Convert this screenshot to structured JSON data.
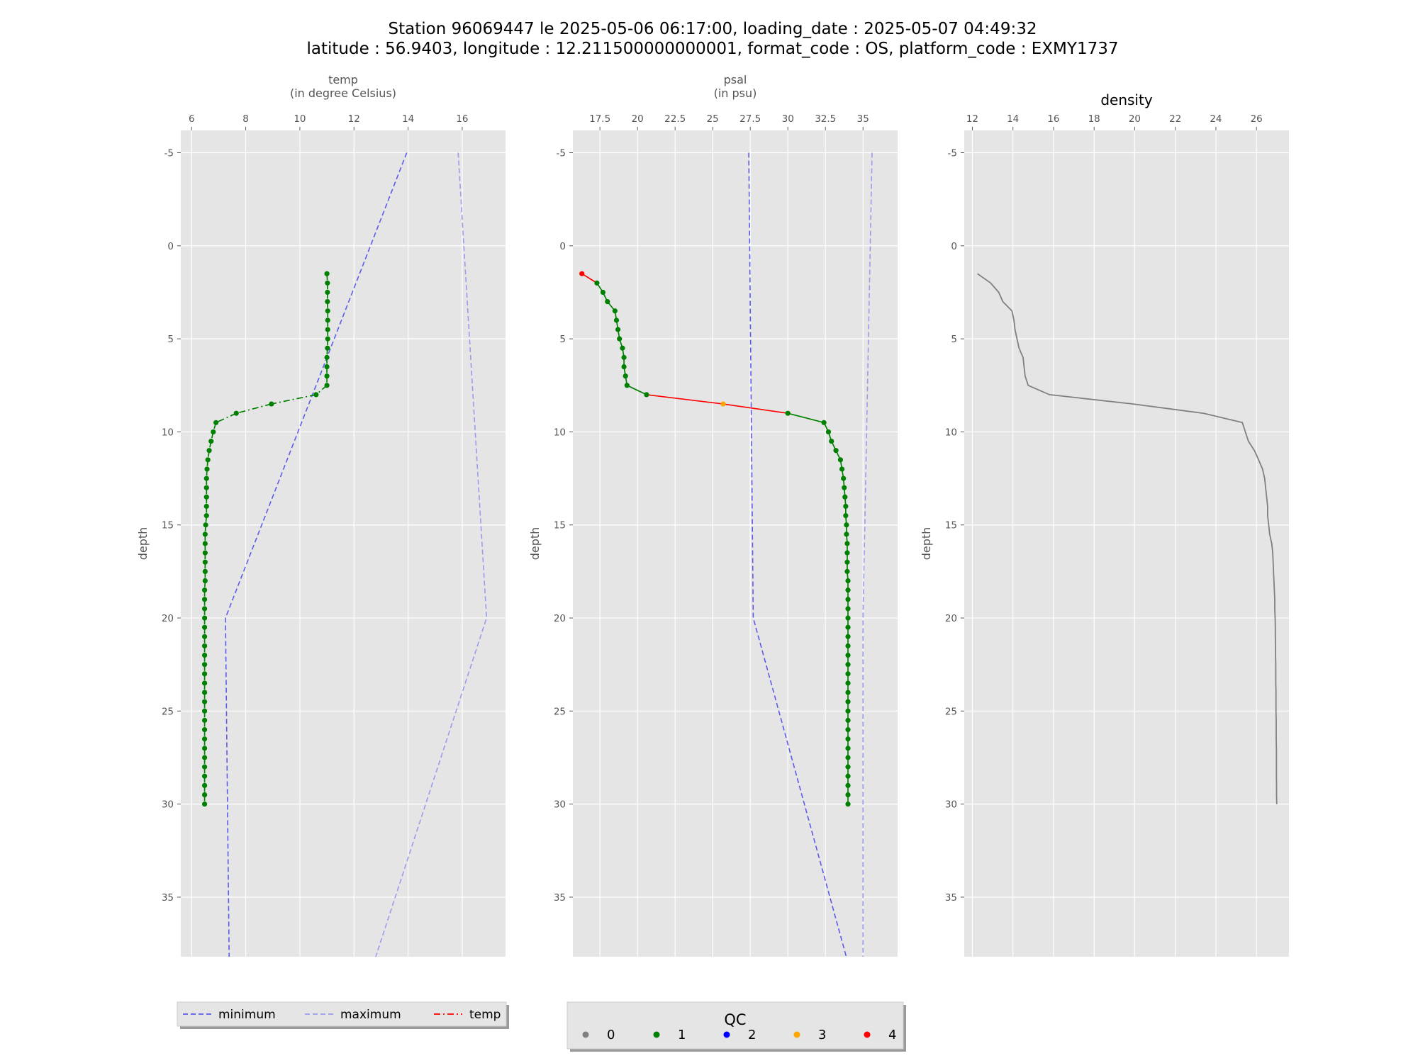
{
  "figure": {
    "title_line1": "Station 96069447 le 2025-05-06 06:17:00, loading_date : 2025-05-07 04:49:32",
    "title_line2": "latitude : 56.9403, longitude : 12.211500000000001, format_code : OS, platform_code : EXMY1737"
  },
  "colors": {
    "panel_bg": "#e5e5e5",
    "grid": "#ffffff",
    "minimum": "#5b5bea",
    "maximum": "#9b9bee",
    "density": "#808080",
    "qc": {
      "0": "#808080",
      "1": "#008000",
      "2": "#0000ff",
      "3": "#ffa500",
      "4": "#ff0000"
    }
  },
  "legend_lines": {
    "items": [
      {
        "label": "minimum",
        "color": "#5b5bea",
        "style": "dashed"
      },
      {
        "label": "maximum",
        "color": "#9b9bee",
        "style": "dashed"
      },
      {
        "label": "temp",
        "color": "#ff0000",
        "style": "dashdot"
      }
    ]
  },
  "legend_qc": {
    "title": "QC",
    "items": [
      {
        "label": "0",
        "color": "#808080"
      },
      {
        "label": "1",
        "color": "#008000"
      },
      {
        "label": "2",
        "color": "#0000ff"
      },
      {
        "label": "3",
        "color": "#ffa500"
      },
      {
        "label": "4",
        "color": "#ff0000"
      }
    ]
  },
  "chart_data": [
    {
      "type": "line",
      "xlabel": "temp\n(in degree Celsius)",
      "ylabel": "depth",
      "xlim": [
        5.6,
        17.6
      ],
      "ylim": [
        38.2,
        -6.2
      ],
      "xticks": [
        6,
        8,
        10,
        12,
        14,
        16
      ],
      "yticks": [
        -5,
        0,
        5,
        10,
        15,
        20,
        25,
        30,
        35
      ],
      "grid": true,
      "minimum": {
        "x": [
          13.95,
          7.25,
          7.4
        ],
        "y": [
          -5,
          20,
          40
        ]
      },
      "maximum": {
        "x": [
          15.85,
          16.9,
          12.4
        ],
        "y": [
          -5,
          20,
          40
        ]
      },
      "profile": {
        "line_style": "dashdot",
        "depth": [
          1.5,
          2,
          2.5,
          3,
          3.5,
          4,
          4.5,
          5,
          5.5,
          6,
          6.5,
          7,
          7.5,
          8,
          8.5,
          9,
          9.5,
          10,
          10.5,
          11,
          11.5,
          12,
          12.5,
          13,
          13.5,
          14,
          14.5,
          15,
          15.5,
          16,
          16.5,
          17,
          17.5,
          18,
          18.5,
          19,
          19.5,
          20,
          20.5,
          21,
          21.5,
          22,
          22.5,
          23,
          23.5,
          24,
          24.5,
          25,
          25.5,
          26,
          26.5,
          27,
          27.5,
          28,
          28.5,
          29,
          29.5,
          30
        ],
        "values": [
          11.0,
          11.02,
          11.02,
          11.02,
          11.03,
          11.03,
          11.03,
          11.03,
          11.02,
          11.0,
          11.0,
          11.0,
          11.0,
          10.6,
          8.95,
          7.65,
          6.9,
          6.8,
          6.72,
          6.65,
          6.6,
          6.57,
          6.55,
          6.55,
          6.55,
          6.55,
          6.55,
          6.52,
          6.5,
          6.5,
          6.5,
          6.5,
          6.5,
          6.5,
          6.48,
          6.48,
          6.48,
          6.48,
          6.48,
          6.48,
          6.48,
          6.48,
          6.48,
          6.48,
          6.48,
          6.48,
          6.48,
          6.48,
          6.48,
          6.48,
          6.48,
          6.48,
          6.48,
          6.48,
          6.48,
          6.48,
          6.48,
          6.48
        ],
        "qc": [
          1,
          1,
          1,
          1,
          1,
          1,
          1,
          1,
          1,
          1,
          1,
          1,
          1,
          1,
          1,
          1,
          1,
          1,
          1,
          1,
          1,
          1,
          1,
          1,
          1,
          1,
          1,
          1,
          1,
          1,
          1,
          1,
          1,
          1,
          1,
          1,
          1,
          1,
          1,
          1,
          1,
          1,
          1,
          1,
          1,
          1,
          1,
          1,
          1,
          1,
          1,
          1,
          1,
          1,
          1,
          1,
          1,
          1
        ]
      }
    },
    {
      "type": "line",
      "xlabel": "psal\n(in psu)",
      "ylabel": "depth",
      "xlim": [
        15.7,
        37.3
      ],
      "ylim": [
        38.2,
        -6.2
      ],
      "xticks": [
        17.5,
        20.0,
        22.5,
        25.0,
        27.5,
        30.0,
        32.5,
        35.0
      ],
      "yticks": [
        -5,
        0,
        5,
        10,
        15,
        20,
        25,
        30,
        35
      ],
      "grid": true,
      "minimum": {
        "x": [
          27.4,
          27.7,
          34.5
        ],
        "y": [
          -5,
          20,
          40
        ]
      },
      "maximum": {
        "x": [
          35.6,
          35.0,
          35.0
        ],
        "y": [
          -5,
          20,
          40
        ]
      },
      "profile": {
        "line_style": "solid",
        "depth": [
          1.5,
          2,
          2.5,
          3,
          3.5,
          4,
          4.5,
          5,
          5.5,
          6,
          6.5,
          7,
          7.5,
          8,
          8.5,
          9,
          9.5,
          10,
          10.5,
          11,
          11.5,
          12,
          12.5,
          13,
          13.5,
          14,
          14.5,
          15,
          15.5,
          16,
          16.5,
          17,
          17.5,
          18,
          18.5,
          19,
          19.5,
          20,
          20.5,
          21,
          21.5,
          22,
          22.5,
          23,
          23.5,
          24,
          24.5,
          25,
          25.5,
          26,
          26.5,
          27,
          27.5,
          28,
          28.5,
          29,
          29.5,
          30
        ],
        "values": [
          16.3,
          17.3,
          17.7,
          18.0,
          18.5,
          18.6,
          18.7,
          18.8,
          19.0,
          19.1,
          19.1,
          19.2,
          19.3,
          20.6,
          25.7,
          30.0,
          32.4,
          32.7,
          32.9,
          33.2,
          33.5,
          33.6,
          33.7,
          33.75,
          33.8,
          33.85,
          33.85,
          33.9,
          33.9,
          33.95,
          33.95,
          33.95,
          33.95,
          34.0,
          34.0,
          34.0,
          34.0,
          34.0,
          34.0,
          34.0,
          34.0,
          34.0,
          34.0,
          34.0,
          34.0,
          34.0,
          34.0,
          34.0,
          34.0,
          34.0,
          34.0,
          34.0,
          34.0,
          34.0,
          34.0,
          34.0,
          34.0,
          34.0
        ],
        "qc": [
          4,
          1,
          1,
          1,
          1,
          1,
          1,
          1,
          1,
          1,
          1,
          1,
          1,
          1,
          3,
          1,
          1,
          1,
          1,
          1,
          1,
          1,
          1,
          1,
          1,
          1,
          1,
          1,
          1,
          1,
          1,
          1,
          1,
          1,
          1,
          1,
          1,
          1,
          1,
          1,
          1,
          1,
          1,
          1,
          1,
          1,
          1,
          1,
          1,
          1,
          1,
          1,
          1,
          1,
          1,
          1,
          1,
          1
        ]
      }
    },
    {
      "type": "line",
      "title": "density",
      "ylabel": "depth",
      "xlim": [
        11.6,
        27.6
      ],
      "ylim": [
        38.2,
        -6.2
      ],
      "xticks": [
        12,
        14,
        16,
        18,
        20,
        22,
        24,
        26
      ],
      "yticks": [
        -5,
        0,
        5,
        10,
        15,
        20,
        25,
        30,
        35
      ],
      "grid": true,
      "series": [
        {
          "x": [
            12.25,
            12.9,
            13.3,
            13.5,
            13.95,
            14.05,
            14.1,
            14.2,
            14.3,
            14.5,
            14.55,
            14.6,
            14.75,
            15.8,
            19.9,
            23.4,
            25.3,
            25.45,
            25.6,
            25.9,
            26.1,
            26.3,
            26.4,
            26.45,
            26.5,
            26.55,
            26.55,
            26.6,
            26.65,
            26.75,
            26.8,
            26.82,
            26.84,
            26.86,
            26.88,
            26.9,
            26.9,
            26.92,
            26.93,
            26.93,
            26.94,
            26.94,
            26.95,
            26.95,
            26.95,
            26.96,
            26.96,
            26.96,
            26.97,
            26.97,
            26.97,
            26.98,
            26.98,
            26.98,
            26.98,
            26.99,
            26.99,
            27.0
          ],
          "y": [
            1.5,
            2,
            2.5,
            3,
            3.5,
            4,
            4.5,
            5,
            5.5,
            6,
            6.5,
            7,
            7.5,
            8,
            8.5,
            9,
            9.5,
            10,
            10.5,
            11,
            11.5,
            12,
            12.5,
            13,
            13.5,
            14,
            14.5,
            15,
            15.5,
            16,
            16.5,
            17,
            17.5,
            18,
            18.5,
            19,
            19.5,
            20,
            20.5,
            21,
            21.5,
            22,
            22.5,
            23,
            23.5,
            24,
            24.5,
            25,
            25.5,
            26,
            26.5,
            27,
            27.5,
            28,
            28.5,
            29,
            29.5,
            30
          ]
        }
      ]
    }
  ]
}
